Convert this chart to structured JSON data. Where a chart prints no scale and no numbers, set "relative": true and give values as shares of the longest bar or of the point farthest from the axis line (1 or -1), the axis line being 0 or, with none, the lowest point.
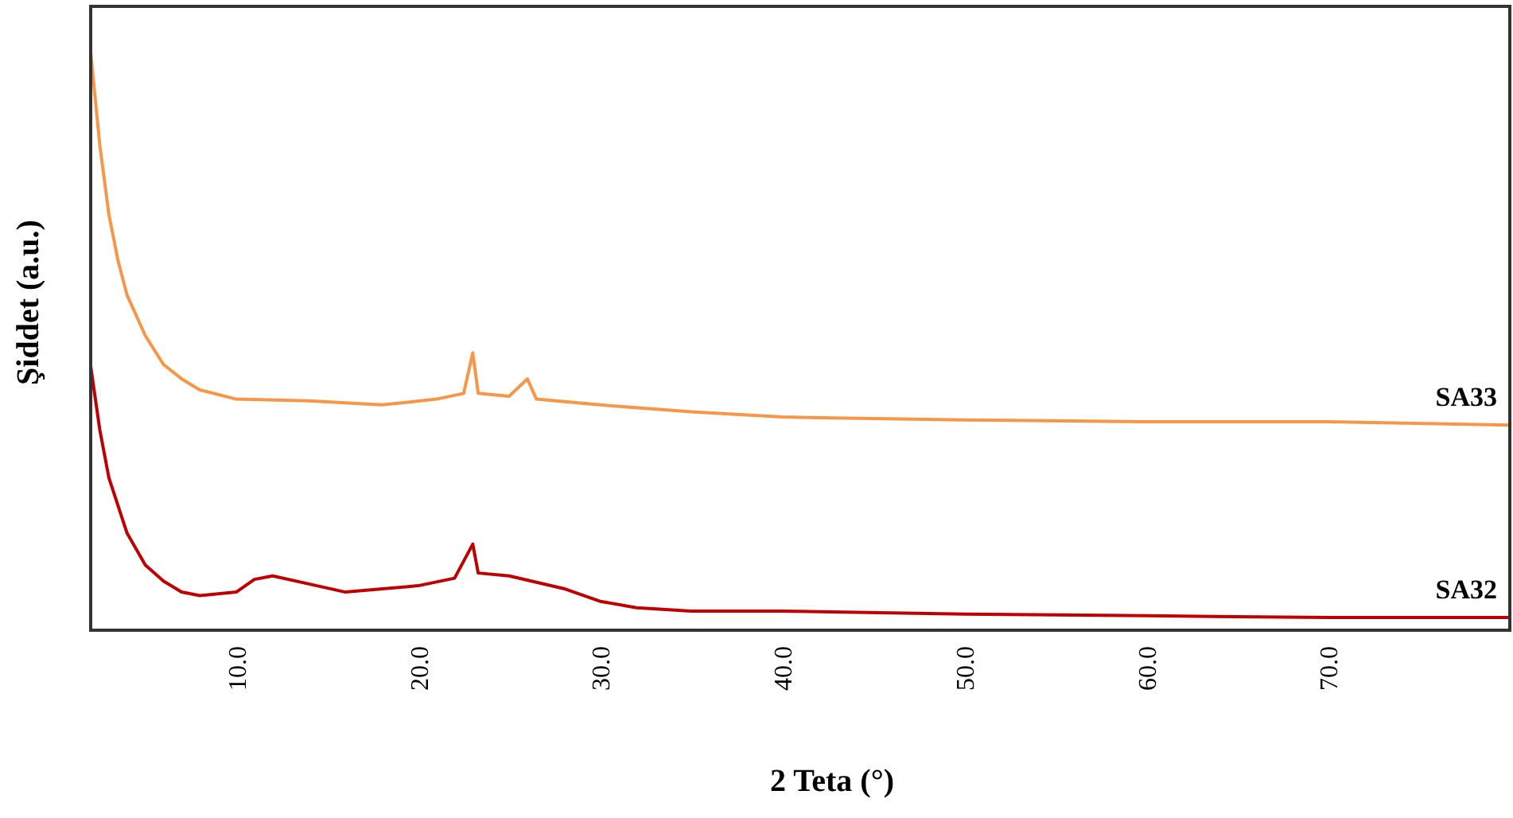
{
  "chart_data": {
    "type": "line",
    "xlabel": "2 Teta  (°)",
    "ylabel": "Şiddet (a.u.)",
    "relative": true,
    "xlim": [
      2,
      80
    ],
    "xticks": [
      {
        "value": 10,
        "label": "10.0"
      },
      {
        "value": 20,
        "label": "20.0"
      },
      {
        "value": 30,
        "label": "30.0"
      },
      {
        "value": 40,
        "label": "40.0"
      },
      {
        "value": 50,
        "label": "50.0"
      },
      {
        "value": 60,
        "label": "60.0"
      },
      {
        "value": 70,
        "label": "70.0"
      }
    ],
    "grid": false,
    "legend": false,
    "marker": "none",
    "line_style": "solid",
    "series": [
      {
        "name": "SA33",
        "color": "#f79646",
        "x": [
          2,
          2.5,
          3,
          3.5,
          4,
          5,
          6,
          7,
          8,
          10,
          14,
          18,
          21,
          22.5,
          23,
          23.3,
          25,
          26,
          26.5,
          30,
          35,
          40,
          50,
          60,
          70,
          80
        ],
        "values": [
          1.0,
          0.84,
          0.72,
          0.64,
          0.58,
          0.51,
          0.46,
          0.435,
          0.416,
          0.4,
          0.397,
          0.39,
          0.4,
          0.41,
          0.48,
          0.41,
          0.405,
          0.435,
          0.4,
          0.39,
          0.378,
          0.369,
          0.364,
          0.361,
          0.361,
          0.355
        ]
      },
      {
        "name": "SA32",
        "color": "#c00000",
        "x": [
          2,
          2.5,
          3,
          4,
          5,
          6,
          7,
          8,
          10,
          11,
          12,
          14,
          16,
          20,
          22,
          23,
          23.3,
          25,
          28,
          30,
          32,
          35,
          40,
          50,
          60,
          70,
          80
        ],
        "values": [
          0.457,
          0.347,
          0.264,
          0.168,
          0.113,
          0.085,
          0.066,
          0.06,
          0.066,
          0.088,
          0.094,
          0.08,
          0.066,
          0.077,
          0.09,
          0.149,
          0.099,
          0.094,
          0.072,
          0.05,
          0.039,
          0.033,
          0.033,
          0.028,
          0.025,
          0.022,
          0.022
        ]
      }
    ]
  }
}
